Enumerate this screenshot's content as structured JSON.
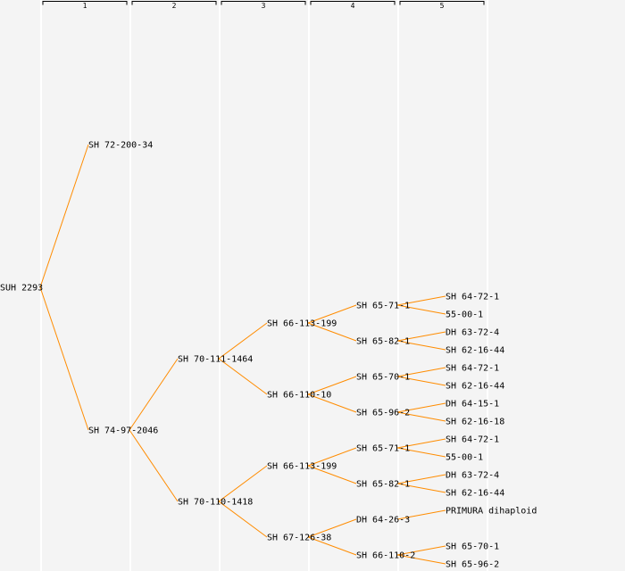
{
  "columns": [
    "1",
    "2",
    "3",
    "4",
    "5"
  ],
  "edge_color": "#ff8c00",
  "tree": {
    "name": "SUH 2293",
    "children": [
      {
        "name": "SH 72-200-34"
      },
      {
        "name": "SH 74-97-2046",
        "children": [
          {
            "name": "SH 70-111-1464",
            "children": [
              {
                "name": "SH 66-113-199",
                "children": [
                  {
                    "name": "SH 65-71-1",
                    "children": [
                      {
                        "name": "SH 64-72-1"
                      },
                      {
                        "name": "55-00-1"
                      }
                    ]
                  },
                  {
                    "name": "SH 65-82-1",
                    "children": [
                      {
                        "name": "DH 63-72-4"
                      },
                      {
                        "name": "SH 62-16-44"
                      }
                    ]
                  }
                ]
              },
              {
                "name": "SH 66-110-10",
                "children": [
                  {
                    "name": "SH 65-70-1",
                    "children": [
                      {
                        "name": "SH 64-72-1"
                      },
                      {
                        "name": "SH 62-16-44"
                      }
                    ]
                  },
                  {
                    "name": "SH 65-96-2",
                    "children": [
                      {
                        "name": "DH 64-15-1"
                      },
                      {
                        "name": "SH 62-16-18"
                      }
                    ]
                  }
                ]
              }
            ]
          },
          {
            "name": "SH 70-110-1418",
            "children": [
              {
                "name": "SH 66-113-199",
                "children": [
                  {
                    "name": "SH 65-71-1",
                    "children": [
                      {
                        "name": "SH 64-72-1"
                      },
                      {
                        "name": "55-00-1"
                      }
                    ]
                  },
                  {
                    "name": "SH 65-82-1",
                    "children": [
                      {
                        "name": "DH 63-72-4"
                      },
                      {
                        "name": "SH 62-16-44"
                      }
                    ]
                  }
                ]
              },
              {
                "name": "SH 67-126-38",
                "children": [
                  {
                    "name": "DH 64-26-3",
                    "children": [
                      {
                        "name": "PRIMURA dihaploid"
                      }
                    ]
                  },
                  {
                    "name": "SH 66-110-2",
                    "children": [
                      {
                        "name": "SH 65-70-1"
                      },
                      {
                        "name": "SH 65-96-2"
                      }
                    ]
                  }
                ]
              }
            ]
          }
        ]
      }
    ]
  }
}
